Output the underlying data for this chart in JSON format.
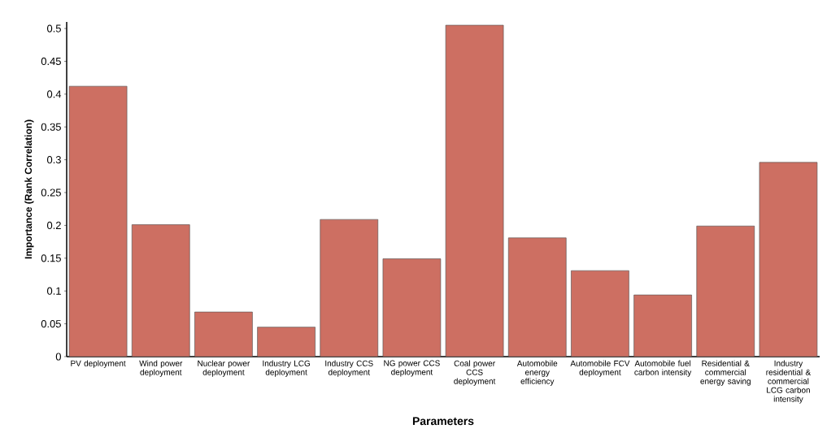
{
  "chart_data": {
    "type": "bar",
    "xlabel": "Parameters",
    "ylabel": "Importance (Rank Correlation)",
    "categories": [
      "PV deployment",
      "Wind power deployment",
      "Nuclear power deployment",
      "Industry LCG deployment",
      "Industry CCS deployment",
      "NG power CCS deployment",
      "Coal power CCS deployment",
      "Automobile energy efficiency",
      "Automobile FCV deployment",
      "Automobile fuel carbon intensity",
      "Residential & commercial energy saving",
      "Industry residential & commercial LCG carbon intensity"
    ],
    "values": [
      0.412,
      0.201,
      0.068,
      0.045,
      0.209,
      0.149,
      0.505,
      0.181,
      0.131,
      0.094,
      0.199,
      0.296
    ],
    "color": "#cd6f62",
    "ylim": [
      0,
      0.51
    ],
    "yticks": [
      0,
      0.05,
      0.1,
      0.15,
      0.2,
      0.25,
      0.3,
      0.35,
      0.4,
      0.45,
      0.5
    ]
  }
}
